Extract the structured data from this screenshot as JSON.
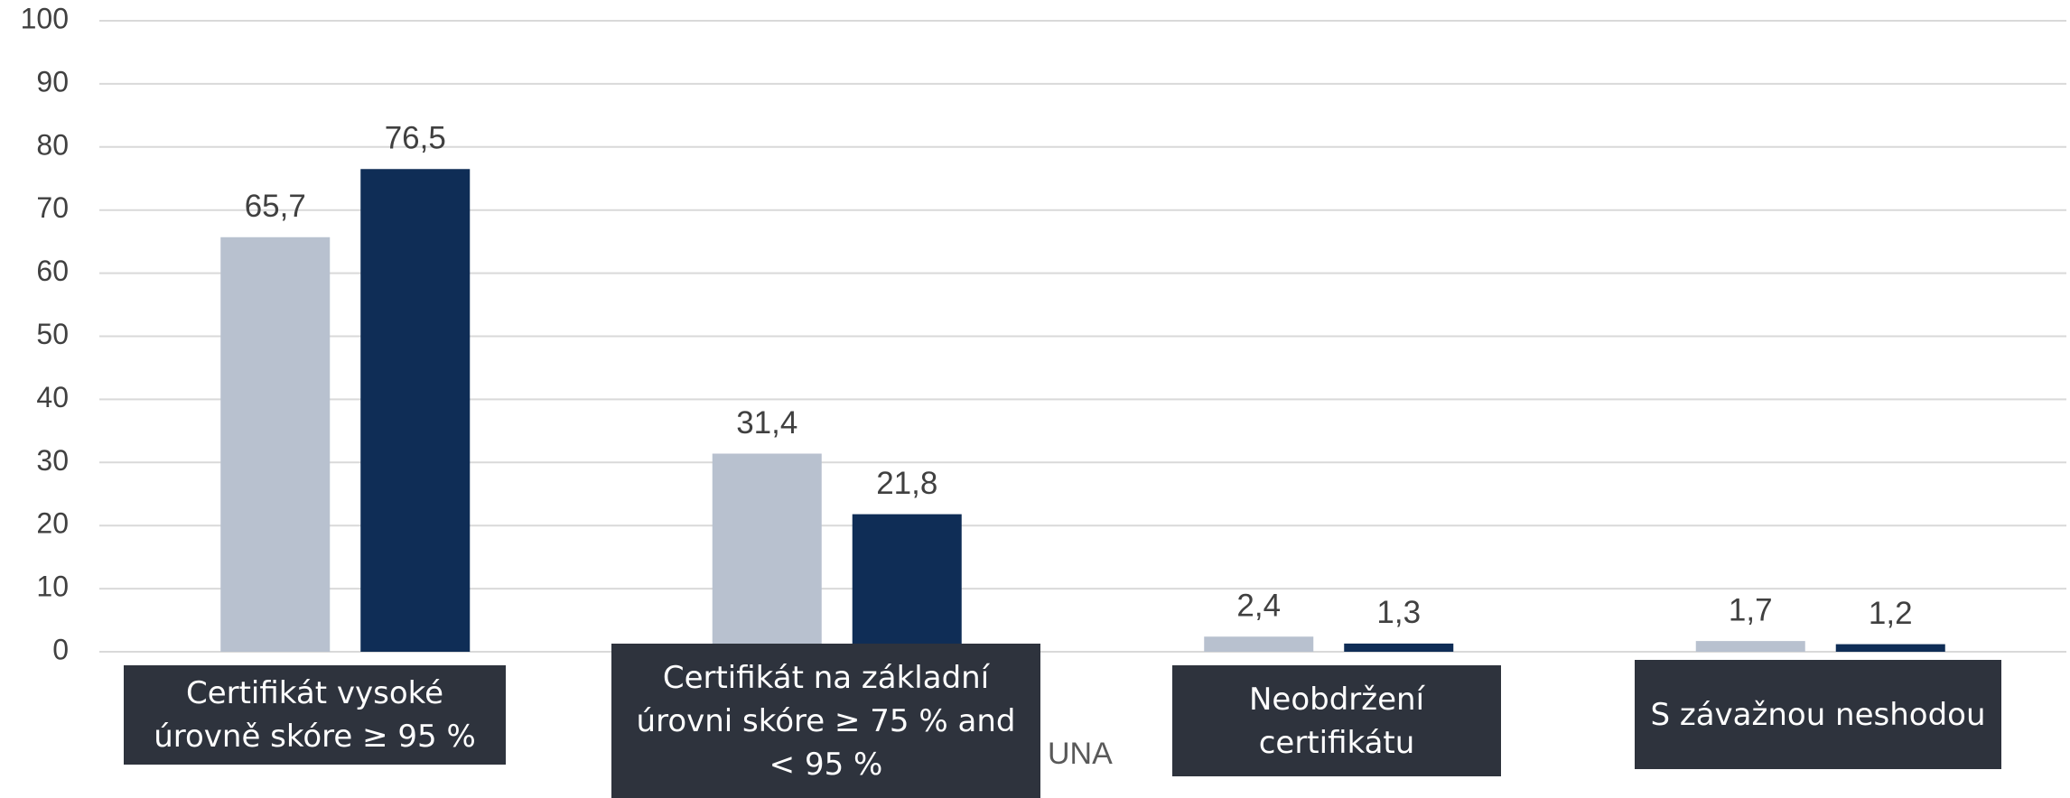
{
  "chart_data": {
    "type": "bar",
    "categories": [
      "Certifikát vysoké úrovně skóre ≥ 95 %",
      "Certifikát na základní úrovni skóre ≥ 75 % and < 95 %",
      "Neobdržení certifikátu",
      "S závažnou neshodou"
    ],
    "series": [
      {
        "color": "#b8c1cf",
        "values": [
          65.7,
          31.4,
          2.4,
          1.7
        ],
        "value_labels": [
          "65,7",
          "31,4",
          "2,4",
          "1,7"
        ]
      },
      {
        "name": "UNA",
        "color": "#0f2d56",
        "values": [
          76.5,
          21.8,
          1.3,
          1.2
        ],
        "value_labels": [
          "76,5",
          "21,8",
          "1,3",
          "1,2"
        ]
      }
    ],
    "ylim": [
      0,
      100
    ],
    "yticks": [
      0,
      10,
      20,
      30,
      40,
      50,
      60,
      70,
      80,
      90,
      100
    ],
    "grid": true
  }
}
